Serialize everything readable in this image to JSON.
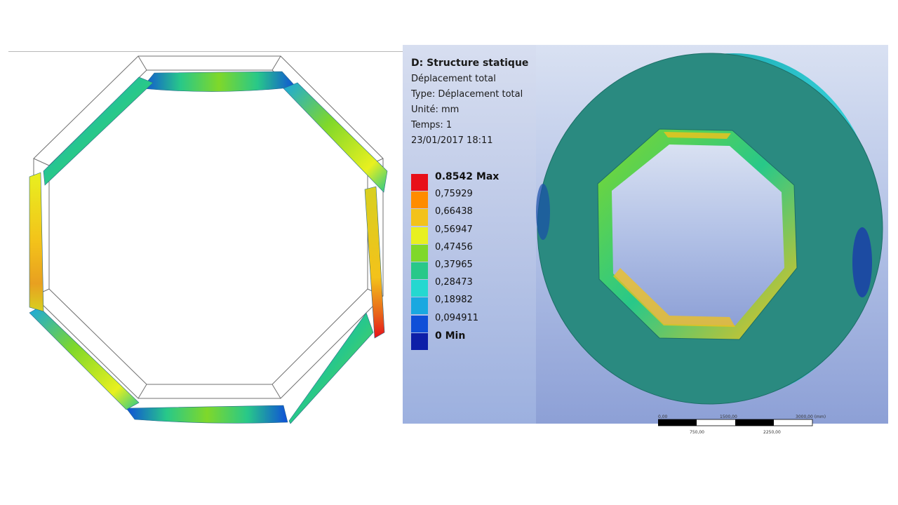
{
  "result_info": {
    "title": "D: Structure statique",
    "lines": [
      "Déplacement total",
      "Type: Déplacement total",
      "Unité: mm",
      "Temps: 1",
      "23/01/2017 18:11"
    ]
  },
  "legend": {
    "max_label": "0.8542 Max",
    "values": [
      "0,75929",
      "0,66438",
      "0,56947",
      "0,47456",
      "0,37965",
      "0,28473",
      "0,18982",
      "0,094911"
    ],
    "min_label": "0 Min",
    "colors": [
      "#e8101a",
      "#ff8c00",
      "#f3c21a",
      "#e8f020",
      "#7fd82a",
      "#28c889",
      "#25d8d0",
      "#19a8e0",
      "#0f4fd8",
      "#0d1fa8"
    ]
  },
  "scale_bar": {
    "top_labels": [
      "0,00",
      "1500,00",
      "3000,00 (mm)"
    ],
    "bottom_labels": [
      "750,00",
      "2250,00"
    ]
  }
}
